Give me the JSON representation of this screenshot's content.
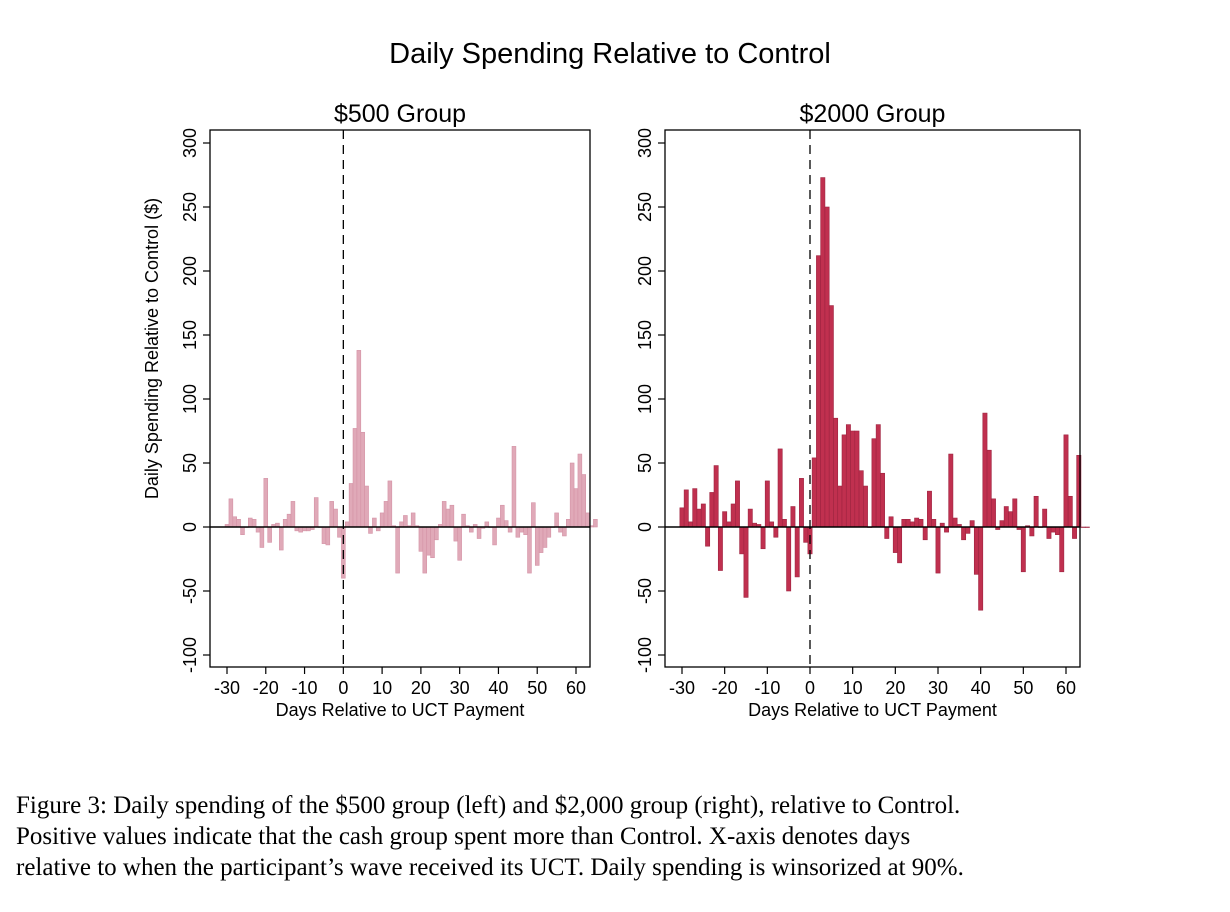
{
  "chart_data": {
    "title": "Daily Spending Relative to Control",
    "type": "bar",
    "panels": [
      {
        "title": "$500 Group",
        "color": "#e0a9b8",
        "xlabel": "Days Relative to UCT Payment",
        "ylabel": "Daily Spending Relative to Control ($)",
        "xlim": [
          -30,
          60
        ],
        "ylim": [
          -100,
          300
        ],
        "xticks": [
          "-30",
          "-20",
          "-10",
          "0",
          "10",
          "20",
          "30",
          "40",
          "50",
          "60"
        ],
        "yticks": [
          "-100",
          "-50",
          "0",
          "50",
          "100",
          "150",
          "200",
          "250",
          "300"
        ],
        "vline": 0,
        "x_start": -30,
        "values": [
          2,
          22,
          8,
          6,
          -6,
          0,
          7,
          6,
          -4,
          -16,
          38,
          -12,
          2,
          3,
          -18,
          6,
          10,
          20,
          -3,
          -4,
          -3,
          -3,
          -2,
          23,
          0,
          -13,
          -14,
          20,
          14,
          -8,
          -40,
          4,
          34,
          77,
          138,
          74,
          32,
          -5,
          7,
          -3,
          11,
          20,
          36,
          1,
          -36,
          4,
          9,
          1,
          11,
          1,
          -19,
          -36,
          -22,
          -24,
          -10,
          2,
          20,
          14,
          17,
          -11,
          -26,
          10,
          1,
          -4,
          2,
          -9,
          -1,
          4,
          0,
          -14,
          7,
          17,
          5,
          -4,
          63,
          -8,
          -4,
          -6,
          -36,
          19,
          -30,
          -20,
          -16,
          -8,
          0,
          11,
          -4,
          -7,
          6,
          50,
          30,
          57,
          41,
          11,
          1,
          6
        ],
        "annotation_values_note": "bars shown for each day"
      },
      {
        "title": "$2000 Group",
        "color": "#c0304f",
        "xlabel": "Days Relative to UCT Payment",
        "ylabel": "",
        "xlim": [
          -30,
          60
        ],
        "ylim": [
          -100,
          300
        ],
        "xticks": [
          "-30",
          "-20",
          "-10",
          "0",
          "10",
          "20",
          "30",
          "40",
          "50",
          "60"
        ],
        "yticks": [
          "-100",
          "-50",
          "0",
          "50",
          "100",
          "150",
          "200",
          "250",
          "300"
        ],
        "vline": 0,
        "x_start": -30,
        "values": [
          15,
          29,
          4,
          30,
          14,
          18,
          -15,
          27,
          48,
          -34,
          12,
          4,
          18,
          36,
          -21,
          -55,
          14,
          3,
          2,
          -17,
          36,
          4,
          -8,
          61,
          6,
          -50,
          16,
          -39,
          38,
          -12,
          -21,
          54,
          212,
          273,
          250,
          173,
          85,
          32,
          72,
          80,
          75,
          75,
          44,
          32,
          0,
          69,
          80,
          42,
          -9,
          8,
          -20,
          -28,
          6,
          6,
          4,
          7,
          6,
          -10,
          28,
          6,
          -36,
          3,
          -4,
          57,
          7,
          2,
          -10,
          -5,
          5,
          -37,
          -65,
          89,
          60,
          22,
          -2,
          5,
          16,
          12,
          22,
          -2,
          -35,
          1,
          -7,
          24,
          0,
          14,
          -9,
          -4,
          -6,
          -35,
          72,
          24,
          -9,
          56,
          0,
          0
        ]
      }
    ]
  },
  "caption": {
    "lines": [
      "Figure 3: Daily spending of the $500 group (left) and $2,000 group (right), relative to Control.",
      "Positive values indicate that the cash group spent more than Control.  X-axis denotes days",
      "relative to when the participant’s wave received its UCT. Daily spending is winsorized at 90%."
    ]
  }
}
